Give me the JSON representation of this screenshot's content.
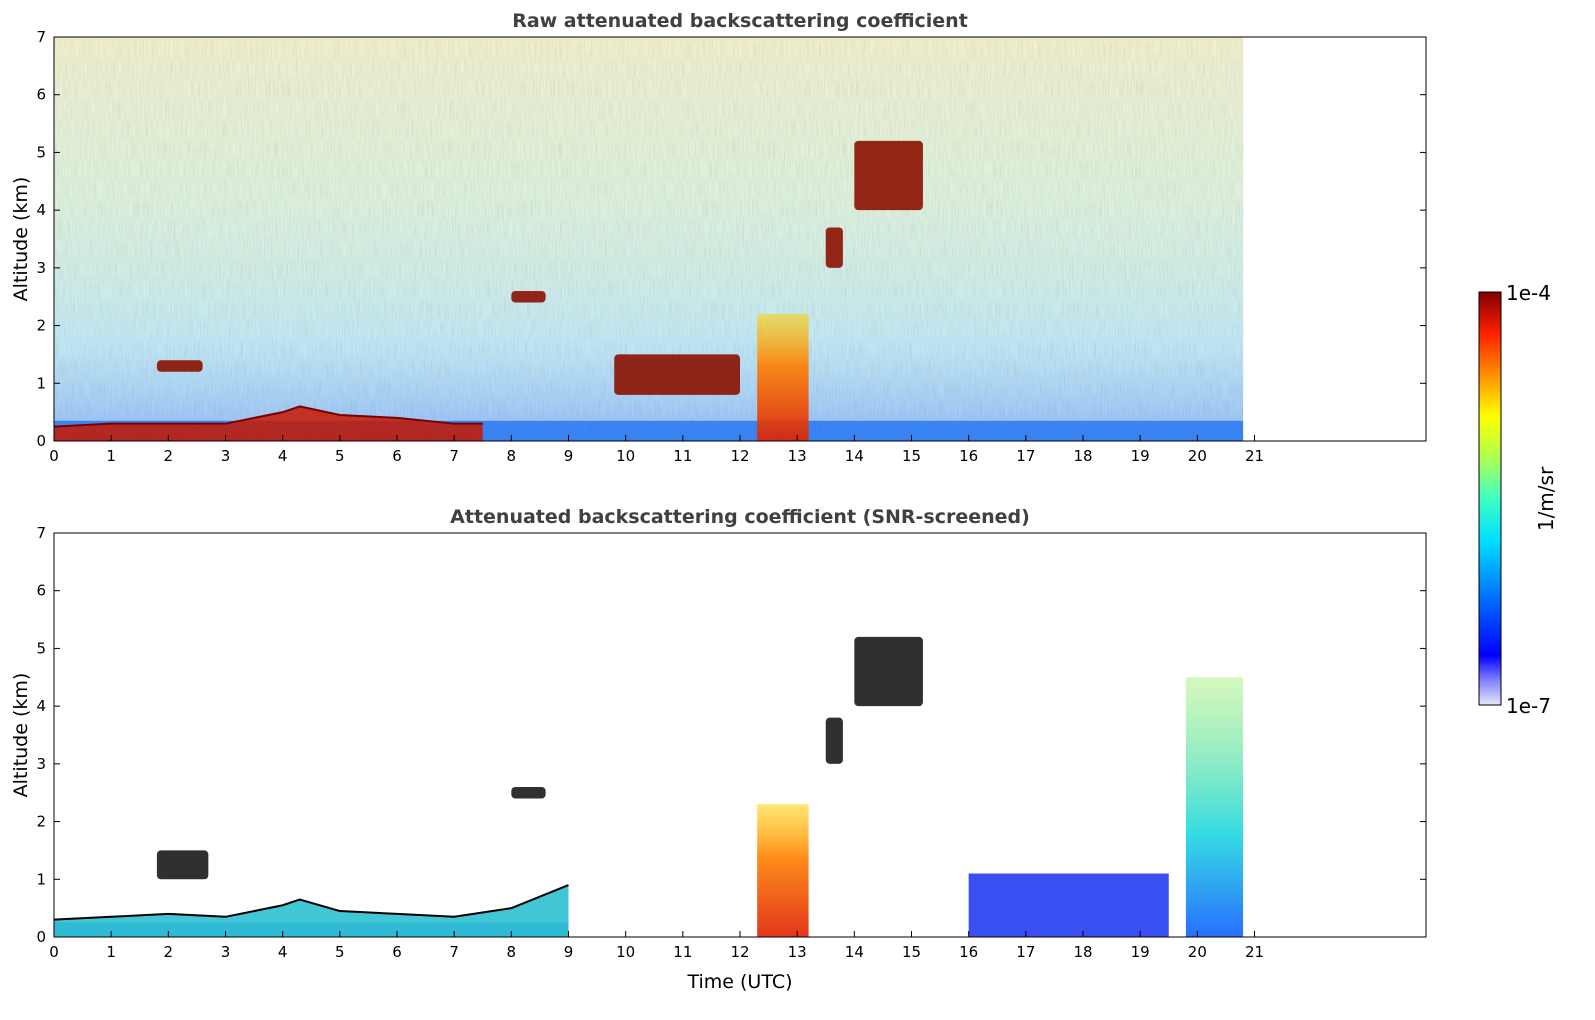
{
  "chart_data": [
    {
      "type": "heatmap",
      "title": "Raw attenuated backscattering coefficient",
      "xlabel": "",
      "ylabel": "Altitude (km)",
      "xlim": [
        0,
        24
      ],
      "ylim": [
        0,
        7
      ],
      "xticks": [
        "0",
        "1",
        "2",
        "3",
        "4",
        "5",
        "6",
        "7",
        "8",
        "9",
        "10",
        "11",
        "12",
        "13",
        "14",
        "15",
        "16",
        "17",
        "18",
        "19",
        "20",
        "21"
      ],
      "yticks": [
        "0",
        "1",
        "2",
        "3",
        "4",
        "5",
        "6",
        "7"
      ],
      "data_end_time": 20.8,
      "features": [
        {
          "kind": "boundary_layer",
          "time": [
            0,
            1,
            2,
            3,
            4,
            4.3,
            5,
            6,
            7,
            7.5
          ],
          "top_km": [
            0.25,
            0.3,
            0.3,
            0.3,
            0.5,
            0.6,
            0.45,
            0.4,
            0.3,
            0.3
          ]
        },
        {
          "kind": "cloud",
          "time_range": [
            1.8,
            2.6
          ],
          "altitude_km": [
            1.2,
            1.4
          ]
        },
        {
          "kind": "cloud",
          "time_range": [
            8.0,
            8.6
          ],
          "altitude_km": [
            2.4,
            2.6
          ]
        },
        {
          "kind": "cloud",
          "time_range": [
            9.8,
            12.0
          ],
          "altitude_km": [
            0.8,
            1.5
          ]
        },
        {
          "kind": "precipitation",
          "time_range": [
            12.3,
            13.2
          ],
          "altitude_km": [
            0,
            2.2
          ]
        },
        {
          "kind": "cloud",
          "time_range": [
            13.5,
            13.8
          ],
          "altitude_km": [
            3.0,
            3.7
          ]
        },
        {
          "kind": "cloud",
          "time_range": [
            14.0,
            15.2
          ],
          "altitude_km": [
            4.0,
            5.2
          ]
        }
      ]
    },
    {
      "type": "heatmap",
      "title": "Attenuated backscattering coefficient (SNR-screened)",
      "xlabel": "Time (UTC)",
      "ylabel": "Altitude (km)",
      "xlim": [
        0,
        24
      ],
      "ylim": [
        0,
        7
      ],
      "xticks": [
        "0",
        "1",
        "2",
        "3",
        "4",
        "5",
        "6",
        "7",
        "8",
        "9",
        "10",
        "11",
        "12",
        "13",
        "14",
        "15",
        "16",
        "17",
        "18",
        "19",
        "20",
        "21"
      ],
      "yticks": [
        "0",
        "1",
        "2",
        "3",
        "4",
        "5",
        "6",
        "7"
      ],
      "data_end_time": 20.8,
      "features": [
        {
          "kind": "boundary_layer",
          "time": [
            0,
            1,
            2,
            3,
            4,
            4.3,
            5,
            6,
            7,
            8,
            9
          ],
          "top_km": [
            0.3,
            0.35,
            0.4,
            0.35,
            0.55,
            0.65,
            0.45,
            0.4,
            0.35,
            0.5,
            0.9
          ]
        },
        {
          "kind": "cloud",
          "time_range": [
            1.8,
            2.7
          ],
          "altitude_km": [
            1.0,
            1.5
          ]
        },
        {
          "kind": "cloud",
          "time_range": [
            8.0,
            8.6
          ],
          "altitude_km": [
            2.4,
            2.6
          ]
        },
        {
          "kind": "precipitation",
          "time_range": [
            12.3,
            13.2
          ],
          "altitude_km": [
            0,
            2.3
          ]
        },
        {
          "kind": "cloud",
          "time_range": [
            13.5,
            13.8
          ],
          "altitude_km": [
            3.0,
            3.8
          ]
        },
        {
          "kind": "cloud",
          "time_range": [
            14.0,
            15.2
          ],
          "altitude_km": [
            4.0,
            5.2
          ]
        },
        {
          "kind": "residual_layer",
          "time_range": [
            16.0,
            19.5
          ],
          "altitude_km": [
            0,
            1.1
          ]
        },
        {
          "kind": "aerosol_plume",
          "time_range": [
            19.8,
            20.8
          ],
          "altitude_km": [
            0,
            4.5
          ]
        }
      ]
    }
  ],
  "colorbar": {
    "max_label": "1e-4",
    "min_label": "1e-7",
    "unit_label": "1/m/sr",
    "colormap": "jet",
    "scale": "log"
  }
}
